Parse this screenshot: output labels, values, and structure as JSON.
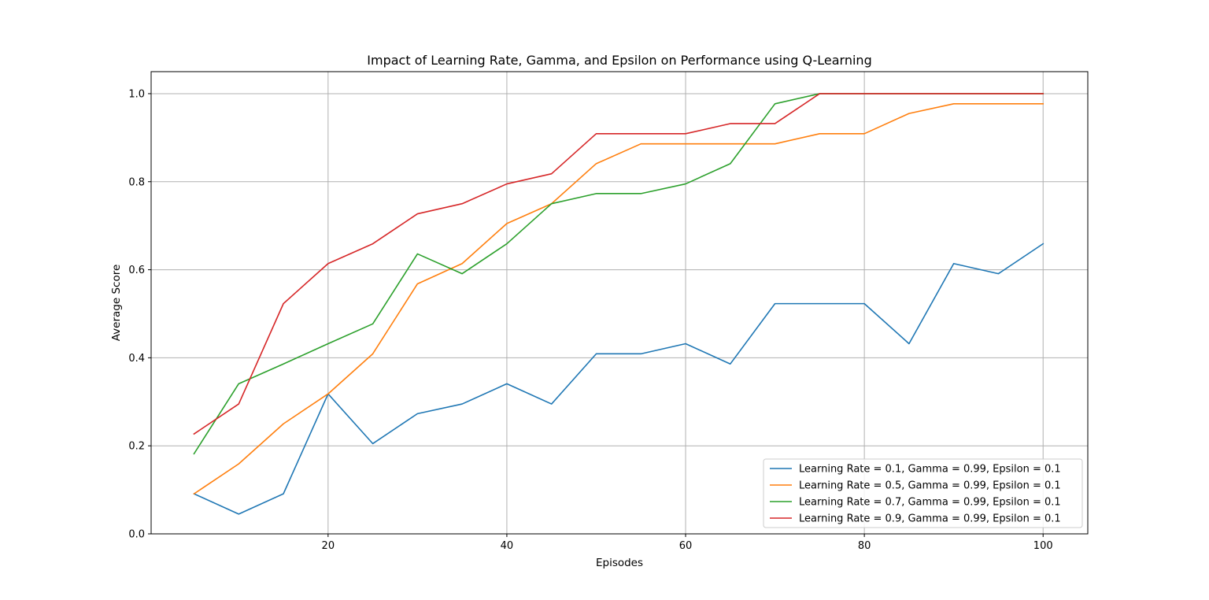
{
  "chart_data": {
    "type": "line",
    "title": "Impact of Learning Rate, Gamma, and Epsilon on Performance using Q-Learning",
    "xlabel": "Episodes",
    "ylabel": "Average Score",
    "xlim": [
      0.2,
      105
    ],
    "ylim": [
      0,
      1.05
    ],
    "xticks": [
      20,
      40,
      60,
      80,
      100
    ],
    "yticks": [
      0.0,
      0.2,
      0.4,
      0.6,
      0.8,
      1.0
    ],
    "xtick_labels": [
      "20",
      "40",
      "60",
      "80",
      "100"
    ],
    "ytick_labels": [
      "0.0",
      "0.2",
      "0.4",
      "0.6",
      "0.8",
      "1.0"
    ],
    "grid": true,
    "legend_position": "bottom-right",
    "x": [
      5,
      10,
      15,
      20,
      25,
      30,
      35,
      40,
      45,
      50,
      55,
      60,
      65,
      70,
      75,
      80,
      85,
      90,
      95,
      100
    ],
    "series": [
      {
        "name": "Learning Rate = 0.1, Gamma = 0.99, Epsilon = 0.1",
        "color": "#1f77b4",
        "values": [
          0.091,
          0.045,
          0.091,
          0.318,
          0.205,
          0.273,
          0.295,
          0.341,
          0.295,
          0.409,
          0.409,
          0.432,
          0.386,
          0.523,
          0.523,
          0.523,
          0.432,
          0.614,
          0.591,
          0.659
        ]
      },
      {
        "name": "Learning Rate = 0.5, Gamma = 0.99, Epsilon = 0.1",
        "color": "#ff7f0e",
        "values": [
          0.091,
          0.159,
          0.25,
          0.318,
          0.409,
          0.568,
          0.614,
          0.705,
          0.75,
          0.841,
          0.886,
          0.886,
          0.886,
          0.886,
          0.909,
          0.909,
          0.955,
          0.977,
          0.977,
          0.977
        ]
      },
      {
        "name": "Learning Rate = 0.7, Gamma = 0.99, Epsilon = 0.1",
        "color": "#2ca02c",
        "values": [
          0.182,
          0.341,
          0.386,
          0.432,
          0.477,
          0.636,
          0.591,
          0.659,
          0.75,
          0.773,
          0.773,
          0.795,
          0.841,
          0.977,
          1.0,
          1.0,
          1.0,
          1.0,
          1.0,
          1.0
        ]
      },
      {
        "name": "Learning Rate = 0.9, Gamma = 0.99, Epsilon = 0.1",
        "color": "#d62728",
        "values": [
          0.227,
          0.295,
          0.523,
          0.614,
          0.659,
          0.727,
          0.75,
          0.795,
          0.818,
          0.909,
          0.909,
          0.909,
          0.932,
          0.932,
          1.0,
          1.0,
          1.0,
          1.0,
          1.0,
          1.0
        ]
      }
    ]
  }
}
